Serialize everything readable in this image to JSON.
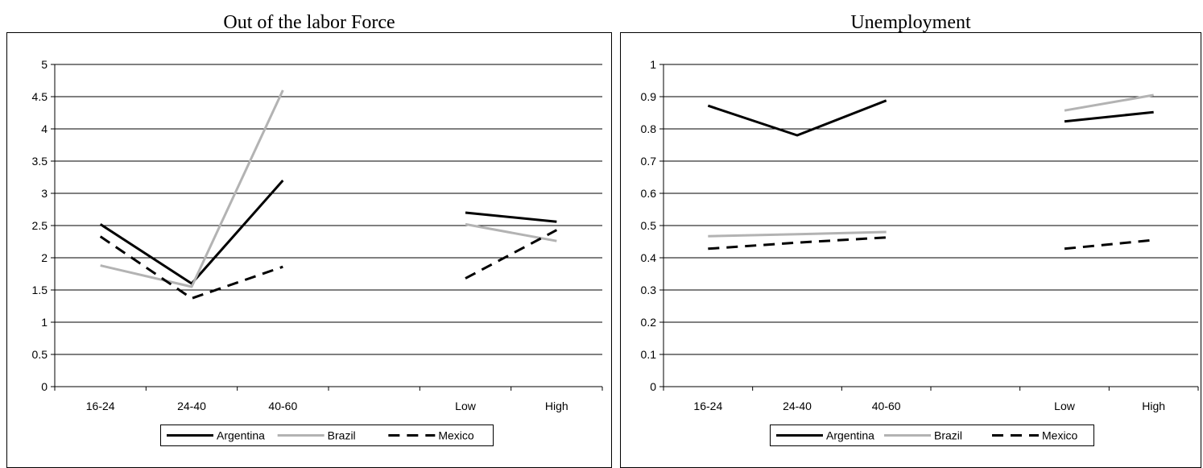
{
  "chart_data": [
    {
      "type": "line",
      "title": "Out of the labor Force",
      "categories": [
        "16-24",
        "24-40",
        "40-60",
        "",
        "Low",
        "High"
      ],
      "ylim": [
        0,
        5
      ],
      "yticks": [
        "0",
        "0.5",
        "1",
        "1.5",
        "2",
        "2.5",
        "3",
        "3.5",
        "4",
        "4.5",
        "5"
      ],
      "grid": true,
      "legend_position": "bottom",
      "series": [
        {
          "name": "Argentina",
          "color": "#000000",
          "dash": "solid",
          "values": [
            2.52,
            1.6,
            3.2,
            null,
            2.7,
            2.56
          ]
        },
        {
          "name": "Brazil",
          "color": "#b3b3b3",
          "dash": "solid",
          "values": [
            1.88,
            1.55,
            4.6,
            null,
            2.52,
            2.26
          ]
        },
        {
          "name": "Mexico",
          "color": "#000000",
          "dash": "dashed",
          "values": [
            2.33,
            1.37,
            1.86,
            null,
            1.68,
            2.43
          ]
        }
      ]
    },
    {
      "type": "line",
      "title": "Unemployment",
      "categories": [
        "16-24",
        "24-40",
        "40-60",
        "",
        "Low",
        "High"
      ],
      "ylim": [
        0,
        1
      ],
      "yticks": [
        "0",
        "0.1",
        "0.2",
        "0.3",
        "0.4",
        "0.5",
        "0.6",
        "0.7",
        "0.8",
        "0.9",
        "1"
      ],
      "grid": true,
      "legend_position": "bottom",
      "series": [
        {
          "name": "Argentina",
          "color": "#000000",
          "dash": "solid",
          "values": [
            0.872,
            0.78,
            0.888,
            null,
            0.823,
            0.852
          ]
        },
        {
          "name": "Brazil",
          "color": "#b3b3b3",
          "dash": "solid",
          "values": [
            0.467,
            0.473,
            0.48,
            null,
            0.857,
            0.905
          ]
        },
        {
          "name": "Mexico",
          "color": "#000000",
          "dash": "dashed",
          "values": [
            0.428,
            0.447,
            0.463,
            null,
            0.428,
            0.455
          ]
        }
      ]
    }
  ]
}
